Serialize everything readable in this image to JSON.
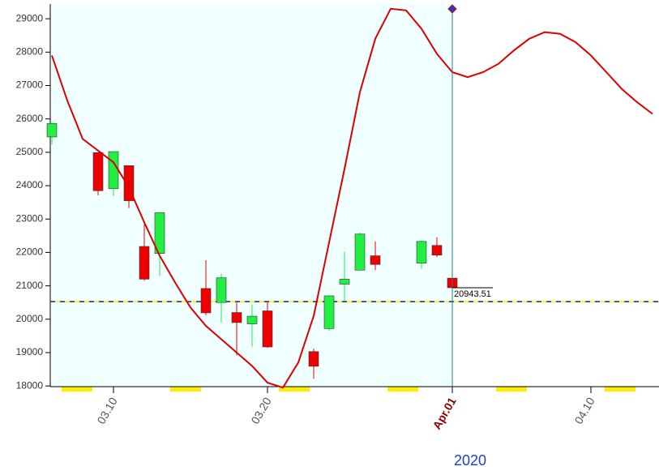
{
  "chart_data": {
    "type": "candlestick",
    "xlabel": "2020",
    "x": [
      "2020-03-06",
      "2020-03-09",
      "2020-03-10",
      "2020-03-11",
      "2020-03-12",
      "2020-03-13",
      "2020-03-16",
      "2020-03-17",
      "2020-03-18",
      "2020-03-19",
      "2020-03-20",
      "2020-03-23",
      "2020-03-24",
      "2020-03-25",
      "2020-03-26",
      "2020-03-27",
      "2020-03-30",
      "2020-03-31",
      "2020-04-01"
    ],
    "open": [
      25460,
      24990,
      23910,
      24600,
      22180,
      21970,
      20920,
      20500,
      20200,
      19860,
      20250,
      19030,
      19720,
      21050,
      21470,
      21900,
      21680,
      22210,
      21230
    ],
    "high": [
      25900,
      24990,
      25020,
      24600,
      22840,
      23190,
      21770,
      21360,
      20500,
      20440,
      20530,
      19120,
      20700,
      22020,
      22600,
      22330,
      22360,
      22460,
      21350
    ],
    "low": [
      25230,
      23710,
      23690,
      23330,
      21150,
      21290,
      20120,
      19900,
      18920,
      19180,
      19140,
      18210,
      19650,
      20540,
      21470,
      21470,
      21520,
      21860,
      20943.51
    ],
    "close": [
      25860,
      23850,
      25020,
      23550,
      21200,
      23190,
      20190,
      21240,
      19900,
      20090,
      19170,
      18590,
      20700,
      21200,
      22550,
      21640,
      22330,
      21920,
      20943.51
    ],
    "up_color": "#22ee44",
    "down_color": "#ee0000",
    "line": {
      "color": "#dd0000",
      "x": [
        "2020-03-06",
        "2020-03-07",
        "2020-03-08",
        "2020-03-09",
        "2020-03-10",
        "2020-03-11",
        "2020-03-12",
        "2020-03-13",
        "2020-03-14",
        "2020-03-15",
        "2020-03-16",
        "2020-03-17",
        "2020-03-18",
        "2020-03-19",
        "2020-03-20",
        "2020-03-21",
        "2020-03-22",
        "2020-03-23",
        "2020-03-24",
        "2020-03-25",
        "2020-03-26",
        "2020-03-27",
        "2020-03-28",
        "2020-03-29",
        "2020-03-30",
        "2020-03-31",
        "2020-04-01",
        "2020-04-02",
        "2020-04-03",
        "2020-04-04",
        "2020-04-05",
        "2020-04-06",
        "2020-04-07",
        "2020-04-08",
        "2020-04-09",
        "2020-04-10",
        "2020-04-11",
        "2020-04-12",
        "2020-04-13",
        "2020-04-14"
      ],
      "values": [
        27900,
        26550,
        25400,
        25050,
        24700,
        23950,
        22900,
        21900,
        21100,
        20350,
        19800,
        19400,
        19000,
        18600,
        18100,
        17950,
        18700,
        20100,
        22300,
        24500,
        26800,
        28400,
        29300,
        29250,
        28700,
        27950,
        27400,
        27250,
        27400,
        27650,
        28050,
        28400,
        28600,
        28550,
        28300,
        27900,
        27400,
        26900,
        26500,
        26150
      ]
    },
    "reference_line": 20525,
    "cursor": "2020-04-01",
    "xlim": [
      "2020-03-06",
      "2020-04-14"
    ],
    "xticks": [
      {
        "value": "2020-03-10",
        "label": "03.10"
      },
      {
        "value": "2020-03-20",
        "label": "03.20"
      },
      {
        "value": "2020-04-01",
        "label": "Apr.01",
        "color": "#8b0000"
      },
      {
        "value": "2020-04-10",
        "label": "04.10"
      }
    ],
    "ylim": [
      17980,
      29440
    ],
    "yticks": [
      18000,
      19000,
      20000,
      21000,
      22000,
      23000,
      24000,
      25000,
      26000,
      27000,
      28000,
      29000
    ]
  }
}
